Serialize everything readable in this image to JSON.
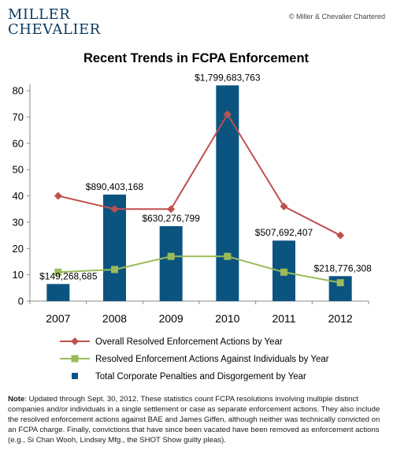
{
  "header": {
    "logo_line1": "MILLER",
    "logo_line2": "CHEVALIER",
    "copyright": "© Miller & Chevalier Chartered"
  },
  "chart_data": {
    "type": "bar+line",
    "title": "Recent Trends in FCPA Enforcement",
    "categories": [
      "2007",
      "2008",
      "2009",
      "2010",
      "2011",
      "2012"
    ],
    "ylim": [
      0,
      80
    ],
    "yticks": [
      0,
      10,
      20,
      30,
      40,
      50,
      60,
      70,
      80
    ],
    "grid": false,
    "legend_position": "bottom",
    "series": [
      {
        "name": "Overall Resolved Enforcement Actions by Year",
        "type": "line",
        "marker": "diamond",
        "color": "#c0504d",
        "values": [
          40,
          35,
          35,
          71,
          36,
          25
        ]
      },
      {
        "name": "Resolved Enforcement Actions Against Individuals by Year",
        "type": "line",
        "marker": "square",
        "color": "#9bbb59",
        "values": [
          11,
          12,
          17,
          17,
          11,
          7
        ]
      },
      {
        "name": "Total Corporate Penalties and Disgorgement by Year",
        "type": "bar",
        "color": "#0b5480",
        "values": [
          149268685,
          890403168,
          630276799,
          1799683763,
          507692407,
          218776308
        ],
        "bar_heights_on_axis": [
          6.5,
          40.5,
          28.5,
          82,
          23,
          9.5
        ],
        "labels": [
          "$149,268,685",
          "$890,403,168",
          "$630,276,799",
          "$1,799,683,763",
          "$507,692,407",
          "$218,776,308"
        ]
      }
    ]
  },
  "note": {
    "label": "Note",
    "text": ": Updated through Sept. 30, 2012. These statistics count FCPA resolutions involving multiple distinct companies and/or individuals in a single settlement or case as separate enforcement actions. They also include the resolved enforcement actions against BAE and James Giffen, although neither was technically convicted on an FCPA charge. Finally, convictions that have since been vacated have been removed as enforcement actions (e.g., Si Chan Wooh, Lindsey Mfg., the SHOT Show guilty pleas)."
  }
}
